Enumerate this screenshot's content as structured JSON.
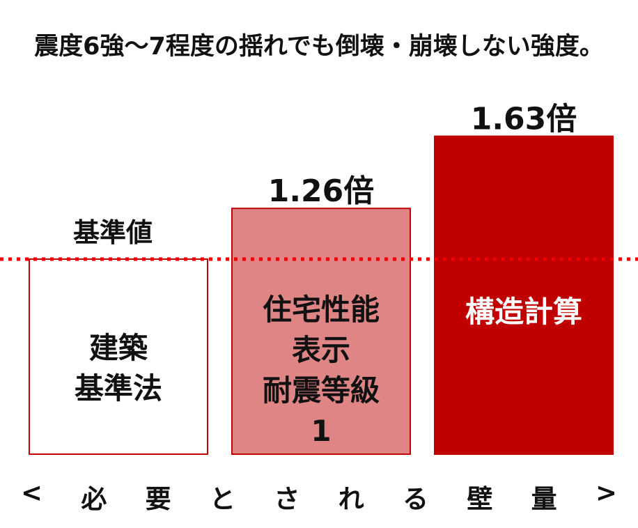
{
  "title": "震度6強～7程度の揺れでも倒壊・崩壊しない強度。",
  "chart_data": {
    "type": "bar",
    "title": "震度6強～7程度の揺れでも倒壊・崩壊しない強度。",
    "categories": [
      "建築基準法",
      "住宅性能表示耐震等級1",
      "構造計算"
    ],
    "category_lines": [
      [
        "建築",
        "基準法"
      ],
      [
        "住宅性能",
        "表示",
        "耐震等級",
        "1"
      ],
      [
        "構造計算"
      ]
    ],
    "values": [
      1.0,
      1.26,
      1.63
    ],
    "data_labels": [
      "",
      "1.26倍",
      "1.63倍"
    ],
    "reference_line": {
      "value": 1.0,
      "label": "基準値",
      "color": "#ee0000",
      "style": "dotted"
    },
    "ylim": [
      0,
      1.63
    ],
    "grid": false,
    "legend": "none",
    "bar_colors": [
      {
        "fill": "#ffffff",
        "stroke": "#c00000",
        "text": "#111111"
      },
      {
        "fill": "#e08585",
        "stroke": "#c00000",
        "text": "#111111"
      },
      {
        "fill": "#c00000",
        "stroke": "#c00000",
        "text": "#ffffff"
      }
    ]
  },
  "footer": {
    "chars": [
      "<",
      "必",
      "要",
      "と",
      "さ",
      "れ",
      "る",
      "壁",
      "量",
      ">"
    ]
  }
}
